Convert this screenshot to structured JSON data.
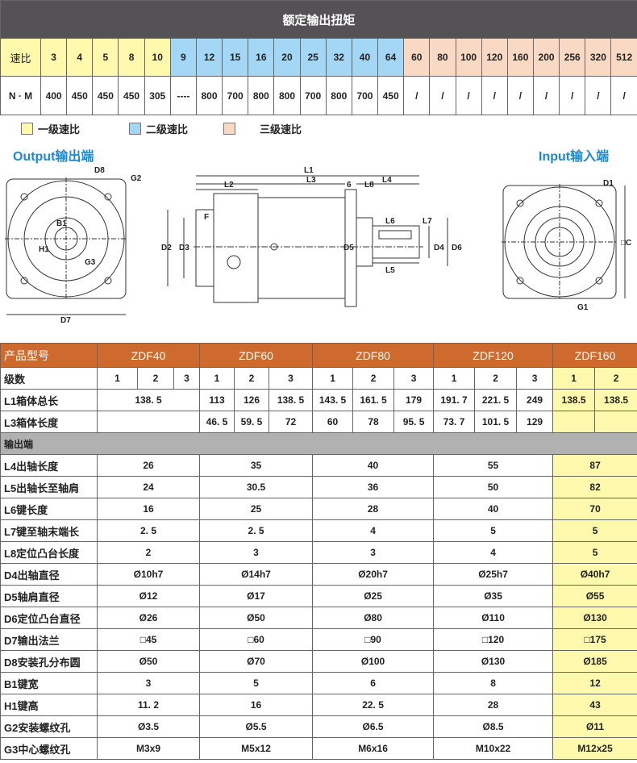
{
  "torque": {
    "title": "额定输出扭矩",
    "ratio_label": "速比",
    "nm_label": "N · M",
    "ratios": [
      "3",
      "4",
      "5",
      "8",
      "10",
      "9",
      "12",
      "15",
      "16",
      "20",
      "25",
      "32",
      "40",
      "64",
      "60",
      "80",
      "100",
      "120",
      "160",
      "200",
      "256",
      "320",
      "512"
    ],
    "values": [
      "400",
      "450",
      "450",
      "450",
      "305",
      "----",
      "800",
      "700",
      "800",
      "800",
      "700",
      "800",
      "700",
      "450",
      "/",
      "/",
      "/",
      "/",
      "/",
      "/",
      "/",
      "/",
      "/"
    ],
    "stage_groups": [
      5,
      9,
      9
    ]
  },
  "legend": [
    "一级速比",
    "二级速比",
    "三级速比"
  ],
  "colors": {
    "stage1": "#fff9ad",
    "stage2": "#a3d7f5",
    "stage3": "#f9d8c4",
    "header": "#cf6a2e",
    "title_bar": "#545254",
    "section": "#b1b1b1",
    "diagram_title": "#1a8ad8"
  },
  "diagrams": {
    "output_title": "Output输出端",
    "input_title": "Input输入端",
    "labels": {
      "D8": "D8",
      "G2": "G2",
      "B1": "B1",
      "H1": "H1",
      "G3": "G3",
      "D7": "D7",
      "L1": "L1",
      "L2": "L2",
      "L3": "L3",
      "L4": "L4",
      "six": "6",
      "L8": "L8",
      "F": "F",
      "D2": "D2",
      "D3": "D3",
      "D5": "D5",
      "L6": "L6",
      "L7": "L7",
      "L5": "L5",
      "D4": "D4",
      "D6": "D6",
      "D1": "D1",
      "C": "□C",
      "G1": "G1"
    }
  },
  "spec": {
    "model_label": "产品型号",
    "models": [
      "ZDF40",
      "ZDF60",
      "ZDF80",
      "ZDF120",
      "ZDF160"
    ],
    "stage_label": "级数",
    "stages": [
      "1",
      "2",
      "3",
      "1",
      "2",
      "3",
      "1",
      "2",
      "3",
      "1",
      "2",
      "3",
      "1",
      "2"
    ],
    "L1": {
      "label": "L1箱体总长",
      "values": [
        "138. 5",
        "113",
        "126",
        "138. 5",
        "143. 5",
        "161. 5",
        "179",
        "191. 7",
        "221. 5",
        "249",
        "138.5",
        "138.5"
      ]
    },
    "L3": {
      "label": "L3箱体长度",
      "values": [
        "",
        "46. 5",
        "59. 5",
        "72",
        "60",
        "78",
        "95. 5",
        "73. 7",
        "101. 5",
        "129",
        "",
        ""
      ]
    },
    "section": "输出端",
    "rows": [
      {
        "label": "L4出轴长度",
        "values": [
          "26",
          "35",
          "40",
          "55",
          "87"
        ]
      },
      {
        "label": "L5出轴长至轴肩",
        "values": [
          "24",
          "30.5",
          "36",
          "50",
          "82"
        ]
      },
      {
        "label": "L6键长度",
        "values": [
          "16",
          "25",
          "28",
          "40",
          "70"
        ]
      },
      {
        "label": "L7键至轴末端长",
        "values": [
          "2. 5",
          "2. 5",
          "4",
          "5",
          "5"
        ]
      },
      {
        "label": "L8定位凸台长度",
        "values": [
          "2",
          "3",
          "3",
          "4",
          "5"
        ]
      },
      {
        "label": "D4出轴直径",
        "values": [
          "Ø10h7",
          "Ø14h7",
          "Ø20h7",
          "Ø25h7",
          "Ø40h7"
        ]
      },
      {
        "label": "D5轴肩直径",
        "values": [
          "Ø12",
          "Ø17",
          "Ø25",
          "Ø35",
          "Ø55"
        ]
      },
      {
        "label": "D6定位凸台直径",
        "values": [
          "Ø26",
          "Ø50",
          "Ø80",
          "Ø110",
          "Ø130"
        ]
      },
      {
        "label": "D7输出法兰",
        "values": [
          "□45",
          "□60",
          "□90",
          "□120",
          "□175"
        ]
      },
      {
        "label": "D8安装孔分布圆",
        "values": [
          "Ø50",
          "Ø70",
          "Ø100",
          "Ø130",
          "Ø185"
        ]
      },
      {
        "label": "B1键宽",
        "values": [
          "3",
          "5",
          "6",
          "8",
          "12"
        ]
      },
      {
        "label": "H1键高",
        "values": [
          "11. 2",
          "16",
          "22. 5",
          "28",
          "43"
        ]
      },
      {
        "label": "G2安装螺纹孔",
        "values": [
          "Ø3.5",
          "Ø5.5",
          "Ø6.5",
          "Ø8.5",
          "Ø11"
        ]
      },
      {
        "label": "G3中心螺纹孔",
        "values": [
          "M3x9",
          "M5x12",
          "M6x16",
          "M10x22",
          "M12x25"
        ]
      }
    ]
  }
}
